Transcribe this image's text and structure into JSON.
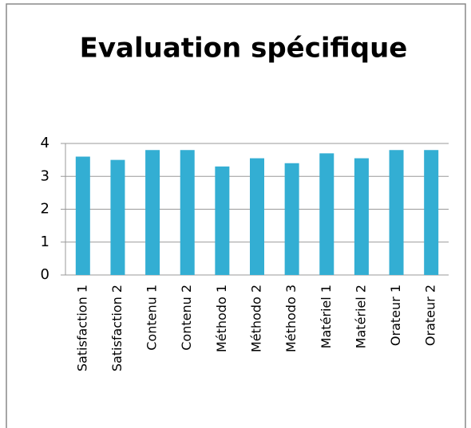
{
  "chart_data": {
    "type": "bar",
    "title": "Evaluation spécifique",
    "categories": [
      "Satisfaction 1",
      "Satisfaction 2",
      "Contenu 1",
      "Contenu 2",
      "Méthodo 1",
      "Méthodo 2",
      "Méthodo 3",
      "Matériel 1",
      "Matériel 2",
      "Orateur 1",
      "Orateur 2"
    ],
    "values": [
      3.6,
      3.5,
      3.8,
      3.8,
      3.3,
      3.55,
      3.4,
      3.7,
      3.55,
      3.8,
      3.8
    ],
    "color": "#33aed3",
    "ylim": [
      0,
      4
    ],
    "yticks": [
      0,
      1,
      2,
      3,
      4
    ],
    "grid": true
  }
}
